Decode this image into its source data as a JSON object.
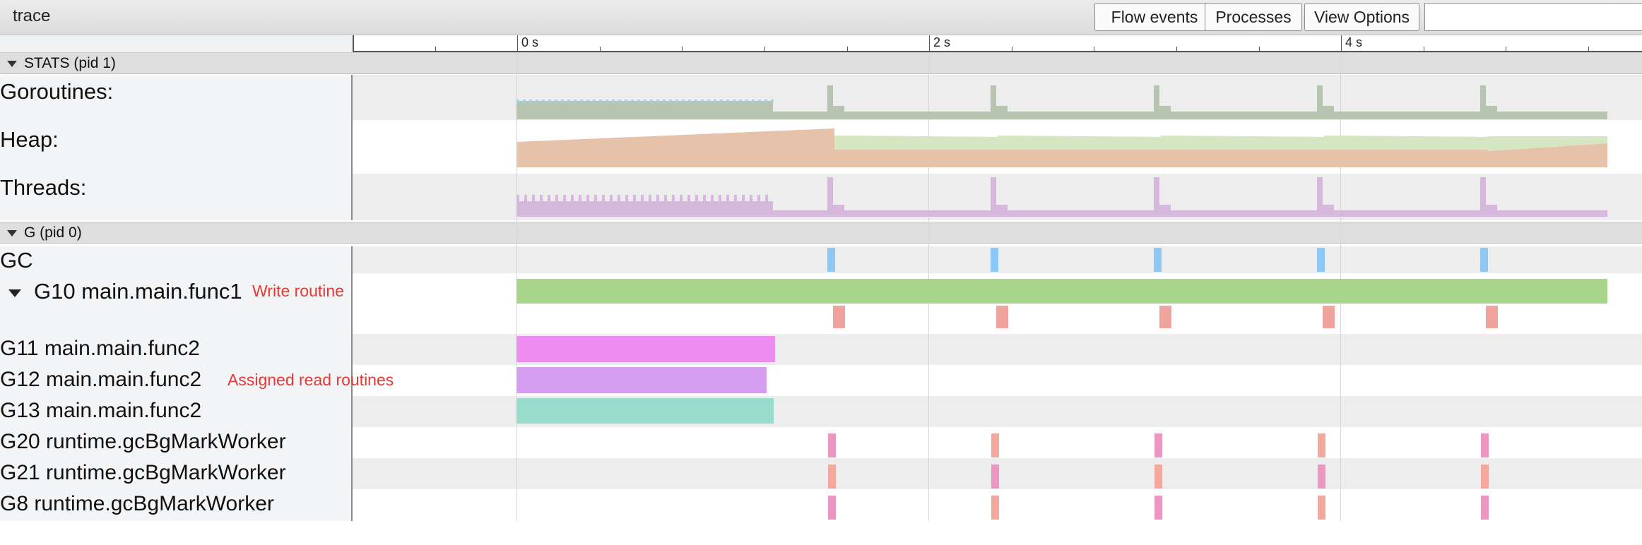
{
  "app_title": "trace",
  "toolbar": {
    "flow_events": "Flow events",
    "processes": "Processes",
    "view_options": "View Options",
    "search_value": ""
  },
  "ruler": {
    "labels": [
      "0 s",
      "2 s",
      "4 s"
    ]
  },
  "processes": {
    "stats": "STATS (pid 1)",
    "g": "G (pid 0)"
  },
  "counters": {
    "goroutines": "Goroutines:",
    "heap": "Heap:",
    "threads": "Threads:"
  },
  "threads": {
    "gc": "GC",
    "g10": "G10 main.main.func1",
    "g11": "G11 main.main.func2",
    "g12": "G12 main.main.func2",
    "g13": "G13 main.main.func2",
    "g20": "G20 runtime.gcBgMarkWorker",
    "g21": "G21 runtime.gcBgMarkWorker",
    "g8": "G8 runtime.gcBgMarkWorker"
  },
  "annotations": {
    "write_routine": "Write routine",
    "read_routines": "Assigned read routines"
  },
  "colors": {
    "goroutines_fill": "#b7c4b0",
    "goroutines_blue": "#9fd4e8",
    "heap_fill": "#e6c2ab",
    "heap_green": "#d6e6c2",
    "threads_fill": "#d6b8dc",
    "gc_slice": "#8ec8f6",
    "g10_slice": "#a9d58a",
    "g10_sub": "#f0a39c",
    "g11_slice": "#ee8df1",
    "g12_slice": "#d49df0",
    "g13_slice": "#98dccd",
    "mark_worker": "#ec96c2",
    "mark_worker_alt": "#f2a89c"
  }
}
